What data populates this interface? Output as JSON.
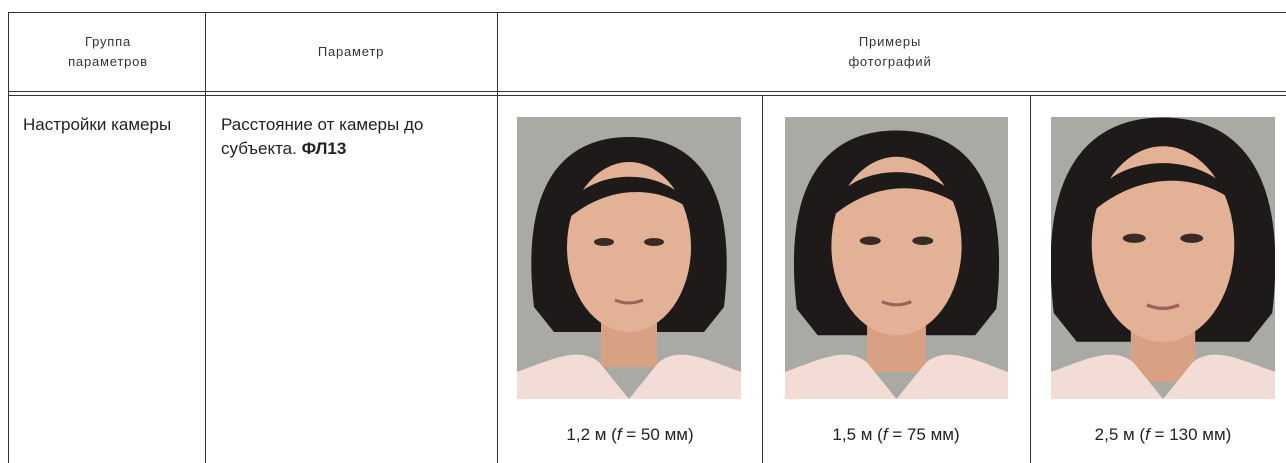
{
  "header": {
    "group": "Группа параметров",
    "parameter": "Параметр",
    "examples": "Примеры фотографий"
  },
  "row": {
    "group": "Настройки камеры",
    "parameter": "Расстояние от камеры до субъекта.",
    "parameter_code": "ФЛ13",
    "photos": [
      {
        "caption_start": "1,2 м (",
        "caption_symbol": "f",
        "caption_end": " = 50 мм)"
      },
      {
        "caption_start": "1,5 м (",
        "caption_symbol": "f",
        "caption_end": " = 75 мм)"
      },
      {
        "caption_start": "2,5 м (",
        "caption_symbol": "f",
        "caption_end": " = 130 мм)"
      }
    ]
  }
}
